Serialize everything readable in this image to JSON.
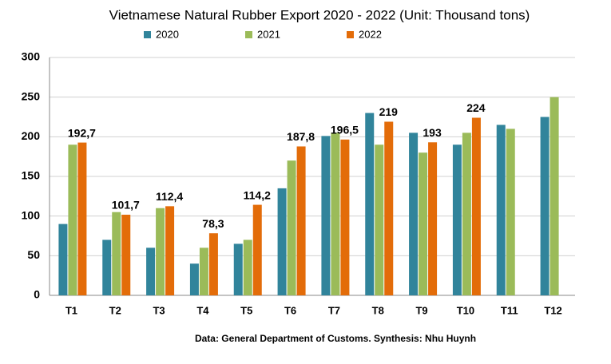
{
  "chart_data": {
    "type": "bar",
    "title": "Vietnamese Natural Rubber Export 2020 - 2022 (Unit: Thousand tons)",
    "source": "Data: General Department of Customs. Synthesis: Nhu Huynh",
    "categories": [
      "T1",
      "T2",
      "T3",
      "T4",
      "T5",
      "T6",
      "T7",
      "T8",
      "T9",
      "T10",
      "T11",
      "T12"
    ],
    "series": [
      {
        "name": "2020",
        "color": "#31849b",
        "values": [
          90,
          70,
          60,
          40,
          65,
          135,
          201,
          230,
          205,
          190,
          215,
          225
        ]
      },
      {
        "name": "2021",
        "color": "#9bbb59",
        "values": [
          190,
          105,
          110,
          60,
          70,
          170,
          205,
          190,
          180,
          205,
          210,
          250
        ]
      },
      {
        "name": "2022",
        "color": "#e36c09",
        "values": [
          192.7,
          101.7,
          112.4,
          78.3,
          114.2,
          187.8,
          196.5,
          219,
          193,
          224,
          null,
          null
        ],
        "value_labels": [
          "192,7",
          "101,7",
          "112,4",
          "78,3",
          "114,2",
          "187,8",
          "196,5",
          "219",
          "193",
          "224",
          null,
          null
        ]
      }
    ],
    "ylim": [
      0,
      300
    ],
    "yticks": [
      0,
      50,
      100,
      150,
      200,
      250,
      300
    ],
    "grid": true
  }
}
